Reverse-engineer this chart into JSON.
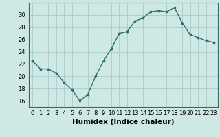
{
  "x": [
    0,
    1,
    2,
    3,
    4,
    5,
    6,
    7,
    8,
    9,
    10,
    11,
    12,
    13,
    14,
    15,
    16,
    17,
    18,
    19,
    20,
    21,
    22,
    23
  ],
  "y": [
    22.5,
    21.2,
    21.2,
    20.5,
    19.0,
    17.8,
    16.0,
    17.0,
    20.0,
    22.5,
    24.5,
    27.0,
    27.3,
    29.0,
    29.5,
    30.5,
    30.7,
    30.5,
    31.2,
    28.7,
    26.8,
    26.3,
    25.8,
    25.5
  ],
  "xlim": [
    -0.5,
    23.5
  ],
  "ylim": [
    15.0,
    32.0
  ],
  "yticks": [
    16,
    18,
    20,
    22,
    24,
    26,
    28,
    30
  ],
  "xticks": [
    0,
    1,
    2,
    3,
    4,
    5,
    6,
    7,
    8,
    9,
    10,
    11,
    12,
    13,
    14,
    15,
    16,
    17,
    18,
    19,
    20,
    21,
    22,
    23
  ],
  "xlabel": "Humidex (Indice chaleur)",
  "line_color": "#2d6e63",
  "marker_color": "#2d6e63",
  "bg_color": "#cde8e5",
  "grid_color": "#aecfcc",
  "axis_label_fontsize": 7.5,
  "tick_fontsize": 6.0
}
